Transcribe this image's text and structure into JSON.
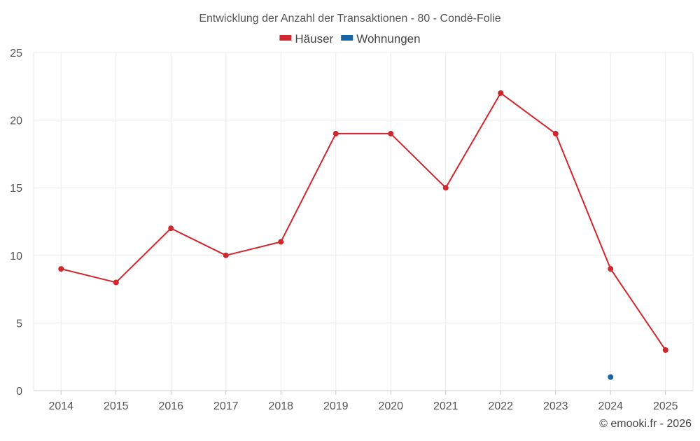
{
  "chart_data": {
    "type": "line",
    "title": "Entwicklung der Anzahl der Transaktionen - 80 - Condé-Folie",
    "categories": [
      "2014",
      "2015",
      "2016",
      "2017",
      "2018",
      "2019",
      "2020",
      "2021",
      "2022",
      "2023",
      "2024",
      "2025"
    ],
    "series": [
      {
        "name": "Häuser",
        "color": "#d0262d",
        "values": [
          9,
          8,
          12,
          10,
          11,
          19,
          19,
          15,
          22,
          19,
          9,
          3
        ]
      },
      {
        "name": "Wohnungen",
        "color": "#1565a7",
        "values": [
          null,
          null,
          null,
          null,
          null,
          null,
          null,
          null,
          null,
          null,
          1,
          null
        ]
      }
    ],
    "ylim": [
      0,
      25
    ],
    "yticks": [
      0,
      5,
      10,
      15,
      20,
      25
    ],
    "grid": true,
    "legend_position": "top-center"
  },
  "credit": "© emooki.fr - 2026"
}
